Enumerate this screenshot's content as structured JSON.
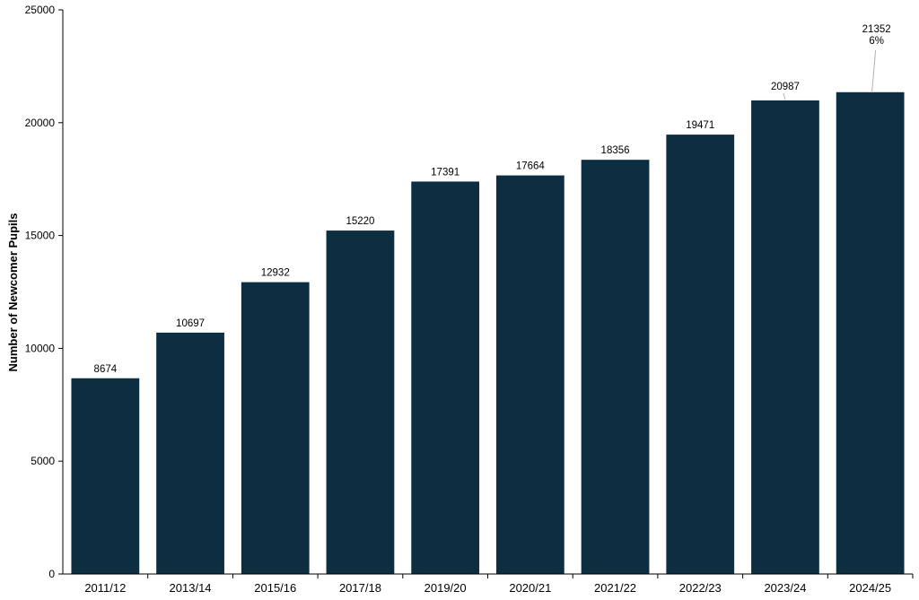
{
  "chart_data": {
    "type": "bar",
    "categories": [
      "2011/12",
      "2013/14",
      "2015/16",
      "2017/18",
      "2019/20",
      "2020/21",
      "2021/22",
      "2022/23",
      "2023/24",
      "2024/25"
    ],
    "values": [
      8674,
      10697,
      12932,
      15220,
      17391,
      17664,
      18356,
      19471,
      20987,
      21352
    ],
    "value_labels": [
      "8674",
      "10697",
      "12932",
      "15220",
      "17391",
      "17664",
      "18356",
      "19471",
      "20987",
      "21352"
    ],
    "annotation": "6%",
    "title": "",
    "xlabel": "",
    "ylabel": "Number of Newcomer Pupils",
    "ylim": [
      0,
      25000
    ],
    "yticks": [
      0,
      5000,
      10000,
      15000,
      20000,
      25000
    ],
    "ytick_labels": [
      "0",
      "5000",
      "10000",
      "15000",
      "20000",
      "25000"
    ],
    "grid": false,
    "legend": "none",
    "bar_color": "#0d2e41"
  }
}
